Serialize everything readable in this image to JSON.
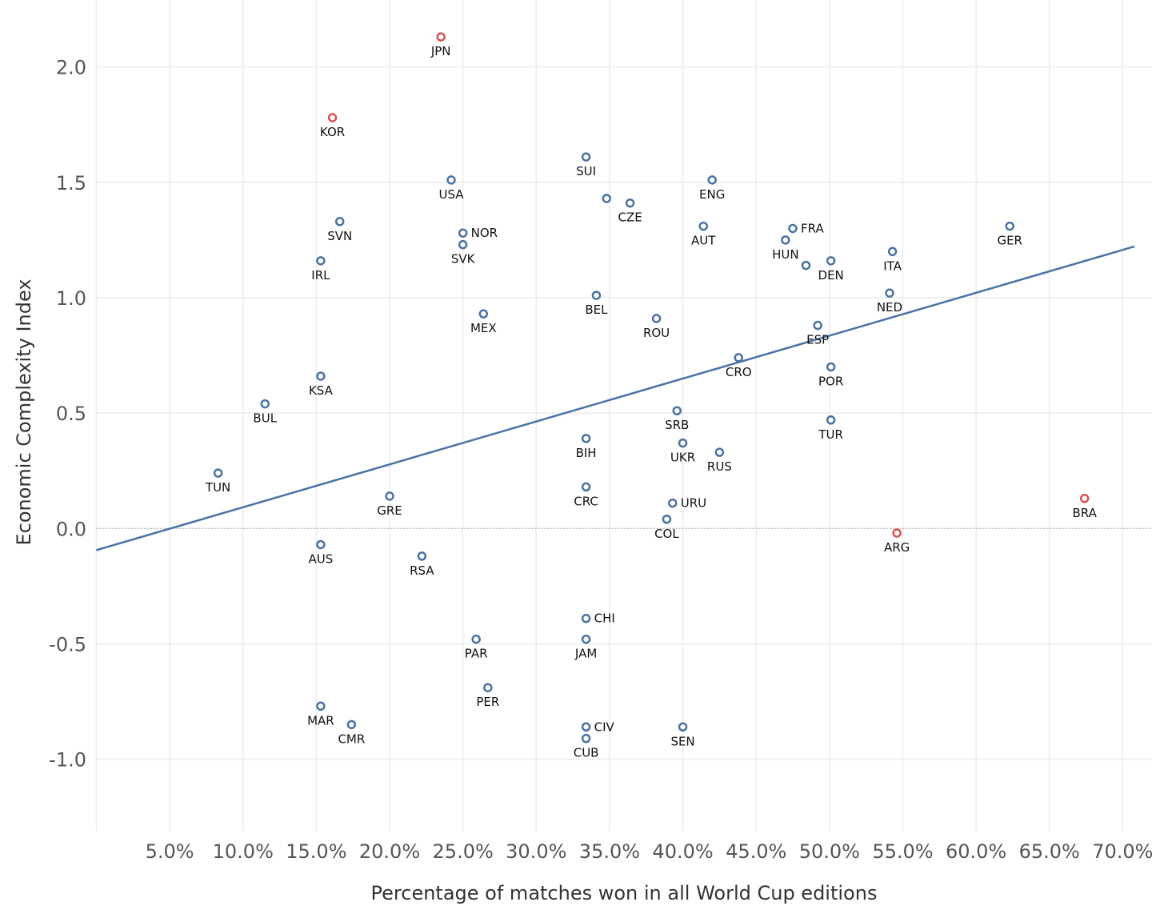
{
  "chart_data": {
    "type": "scatter",
    "title": "",
    "xlabel": "Percentage of matches won in all World Cup editions",
    "ylabel": "Economic Complexity Index",
    "xlim": [
      0,
      72
    ],
    "ylim": [
      -1.31,
      2.29
    ],
    "x_ticks": [
      5,
      10,
      15,
      20,
      25,
      30,
      35,
      40,
      45,
      50,
      55,
      60,
      65,
      70
    ],
    "x_tick_labels": [
      "5.0%",
      "10.0%",
      "15.0%",
      "20.0%",
      "25.0%",
      "30.0%",
      "35.0%",
      "40.0%",
      "45.0%",
      "50.0%",
      "55.0%",
      "60.0%",
      "65.0%",
      "70.0%"
    ],
    "y_ticks": [
      -1.0,
      -0.5,
      0.0,
      0.5,
      1.0,
      1.5,
      2.0
    ],
    "y_tick_labels": [
      "-1.0",
      "-0.5",
      "0.0",
      "0.5",
      "1.0",
      "1.5",
      "2.0"
    ],
    "grid": true,
    "colors": {
      "default": "#4a72a5",
      "highlight": "#d9534f",
      "trend": "#4a72a5"
    },
    "trendline": {
      "x": [
        0,
        70.8
      ],
      "y": [
        -0.094,
        1.222
      ]
    },
    "points": [
      {
        "label": "JPN",
        "x": 23.5,
        "y": 2.13,
        "highlight": true
      },
      {
        "label": "KOR",
        "x": 16.1,
        "y": 1.78,
        "highlight": true
      },
      {
        "label": "SUI",
        "x": 33.4,
        "y": 1.61
      },
      {
        "label": "USA",
        "x": 24.2,
        "y": 1.51
      },
      {
        "label": "ENG",
        "x": 42.0,
        "y": 1.51
      },
      {
        "label": "",
        "x": 34.8,
        "y": 1.43
      },
      {
        "label": "CZE",
        "x": 36.4,
        "y": 1.41
      },
      {
        "label": "SVN",
        "x": 16.6,
        "y": 1.33
      },
      {
        "label": "AUT",
        "x": 41.4,
        "y": 1.31
      },
      {
        "label": "GER",
        "x": 62.3,
        "y": 1.31
      },
      {
        "label": "FRA",
        "x": 47.5,
        "y": 1.3,
        "side": "right"
      },
      {
        "label": "NOR",
        "x": 25.0,
        "y": 1.28,
        "side": "right"
      },
      {
        "label": "HUN",
        "x": 47.0,
        "y": 1.25
      },
      {
        "label": "SVK",
        "x": 25.0,
        "y": 1.23
      },
      {
        "label": "ITA",
        "x": 54.3,
        "y": 1.2
      },
      {
        "label": "IRL",
        "x": 15.3,
        "y": 1.16
      },
      {
        "label": "DEN",
        "x": 50.1,
        "y": 1.16
      },
      {
        "label": "",
        "x": 48.4,
        "y": 1.14
      },
      {
        "label": "NED",
        "x": 54.1,
        "y": 1.02
      },
      {
        "label": "BEL",
        "x": 34.1,
        "y": 1.01
      },
      {
        "label": "MEX",
        "x": 26.4,
        "y": 0.93
      },
      {
        "label": "ROU",
        "x": 38.2,
        "y": 0.91
      },
      {
        "label": "ESP",
        "x": 49.2,
        "y": 0.88
      },
      {
        "label": "CRO",
        "x": 43.8,
        "y": 0.74
      },
      {
        "label": "POR",
        "x": 50.1,
        "y": 0.7
      },
      {
        "label": "KSA",
        "x": 15.3,
        "y": 0.66
      },
      {
        "label": "BUL",
        "x": 11.5,
        "y": 0.54
      },
      {
        "label": "SRB",
        "x": 39.6,
        "y": 0.51
      },
      {
        "label": "TUR",
        "x": 50.1,
        "y": 0.47
      },
      {
        "label": "BIH",
        "x": 33.4,
        "y": 0.39
      },
      {
        "label": "UKR",
        "x": 40.0,
        "y": 0.37
      },
      {
        "label": "RUS",
        "x": 42.5,
        "y": 0.33
      },
      {
        "label": "TUN",
        "x": 8.3,
        "y": 0.24
      },
      {
        "label": "CRC",
        "x": 33.4,
        "y": 0.18
      },
      {
        "label": "GRE",
        "x": 20.0,
        "y": 0.14
      },
      {
        "label": "BRA",
        "x": 67.4,
        "y": 0.13,
        "highlight": true
      },
      {
        "label": "URU",
        "x": 39.3,
        "y": 0.11,
        "side": "right"
      },
      {
        "label": "COL",
        "x": 38.9,
        "y": 0.04
      },
      {
        "label": "ARG",
        "x": 54.6,
        "y": -0.02,
        "highlight": true
      },
      {
        "label": "AUS",
        "x": 15.3,
        "y": -0.07
      },
      {
        "label": "RSA",
        "x": 22.2,
        "y": -0.12
      },
      {
        "label": "CHI",
        "x": 33.4,
        "y": -0.39,
        "side": "right"
      },
      {
        "label": "PAR",
        "x": 25.9,
        "y": -0.48
      },
      {
        "label": "JAM",
        "x": 33.4,
        "y": -0.48
      },
      {
        "label": "PER",
        "x": 26.7,
        "y": -0.69
      },
      {
        "label": "MAR",
        "x": 15.3,
        "y": -0.77
      },
      {
        "label": "CMR",
        "x": 17.4,
        "y": -0.85
      },
      {
        "label": "CIV",
        "x": 33.4,
        "y": -0.86,
        "side": "right"
      },
      {
        "label": "SEN",
        "x": 40.0,
        "y": -0.86
      },
      {
        "label": "CUB",
        "x": 33.4,
        "y": -0.91
      }
    ]
  }
}
